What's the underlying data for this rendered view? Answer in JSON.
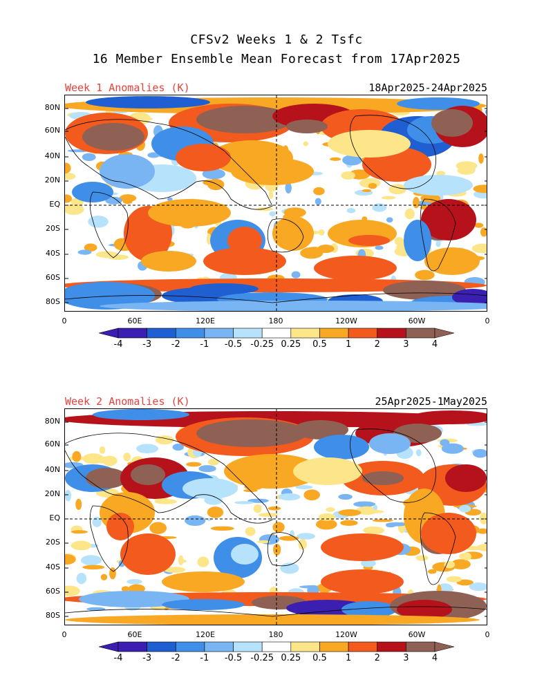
{
  "header": {
    "line1": "CFSv2 Weeks 1 & 2 Tsfc",
    "line2": "16 Member Ensemble Mean Forecast from 17Apr2025"
  },
  "panels": [
    {
      "title": "Week 1 Anomalies (K)",
      "dates": "18Apr2025-24Apr2025"
    },
    {
      "title": "Week 2 Anomalies (K)",
      "dates": "25Apr2025-1May2025"
    }
  ],
  "lat_labels": [
    "80N",
    "60N",
    "40N",
    "20N",
    "EQ",
    "20S",
    "40S",
    "60S",
    "80S"
  ],
  "lon_labels": [
    "0",
    "60E",
    "120E",
    "180",
    "120W",
    "60W",
    "0"
  ],
  "colorbar": {
    "labels": [
      "-4",
      "-3",
      "-2",
      "-1",
      "-0.5",
      "-0.25",
      "0.25",
      "0.5",
      "1",
      "2",
      "3",
      "4"
    ],
    "colors": [
      "#3a1fb0",
      "#1f5fd1",
      "#3f8fe8",
      "#79b5f3",
      "#b7e2fb",
      "#ffffff",
      "#fde58a",
      "#f9a824",
      "#f25a1e",
      "#b5121b",
      "#8f6155"
    ],
    "low_end_color": "#3a1fb0",
    "high_end_color": "#8f6155"
  }
}
